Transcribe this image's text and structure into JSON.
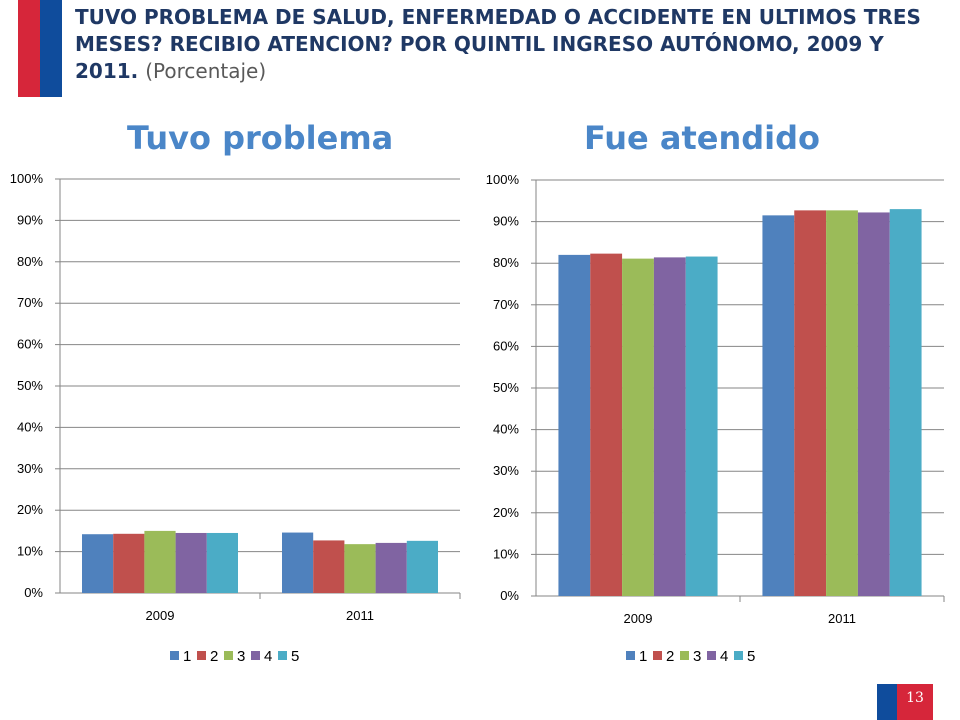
{
  "slide": {
    "title": "TUVO PROBLEMA DE SALUD, ENFERMEDAD O ACCIDENTE EN ULTIMOS TRES MESES?  RECIBIO ATENCION?  POR QUINTIL INGRESO AUTÓNOMO, 2009 Y 2011.",
    "title_unit": "(Porcentaje)",
    "page_number": "13",
    "colors": {
      "flag_red": "#d6263a",
      "flag_blue": "#0f4c9c",
      "heading": "#4a86c8",
      "title": "#1f3864"
    }
  },
  "chart_data": [
    {
      "type": "bar",
      "title": "Tuvo problema",
      "categories": [
        "2009",
        "2011"
      ],
      "ylim": [
        0,
        100
      ],
      "yticks": [
        "0%",
        "10%",
        "20%",
        "30%",
        "40%",
        "50%",
        "60%",
        "70%",
        "80%",
        "90%",
        "100%"
      ],
      "grid": true,
      "legend": "bottom",
      "series": [
        {
          "name": "1",
          "color": "#4f81bd",
          "values": [
            14.2,
            14.6
          ]
        },
        {
          "name": "2",
          "color": "#c0504d",
          "values": [
            14.3,
            12.7
          ]
        },
        {
          "name": "3",
          "color": "#9bbb59",
          "values": [
            15.0,
            11.8
          ]
        },
        {
          "name": "4",
          "color": "#8064a2",
          "values": [
            14.5,
            12.1
          ]
        },
        {
          "name": "5",
          "color": "#4bacc6",
          "values": [
            14.5,
            12.6
          ]
        }
      ]
    },
    {
      "type": "bar",
      "title": "Fue atendido",
      "categories": [
        "2009",
        "2011"
      ],
      "ylim": [
        0,
        100
      ],
      "yticks": [
        "0%",
        "10%",
        "20%",
        "30%",
        "40%",
        "50%",
        "60%",
        "70%",
        "80%",
        "90%",
        "100%"
      ],
      "grid": true,
      "legend": "bottom",
      "series": [
        {
          "name": "1",
          "color": "#4f81bd",
          "values": [
            82.0,
            91.5
          ]
        },
        {
          "name": "2",
          "color": "#c0504d",
          "values": [
            82.3,
            92.7
          ]
        },
        {
          "name": "3",
          "color": "#9bbb59",
          "values": [
            81.1,
            92.7
          ]
        },
        {
          "name": "4",
          "color": "#8064a2",
          "values": [
            81.4,
            92.2
          ]
        },
        {
          "name": "5",
          "color": "#4bacc6",
          "values": [
            81.6,
            93.0
          ]
        }
      ]
    }
  ]
}
